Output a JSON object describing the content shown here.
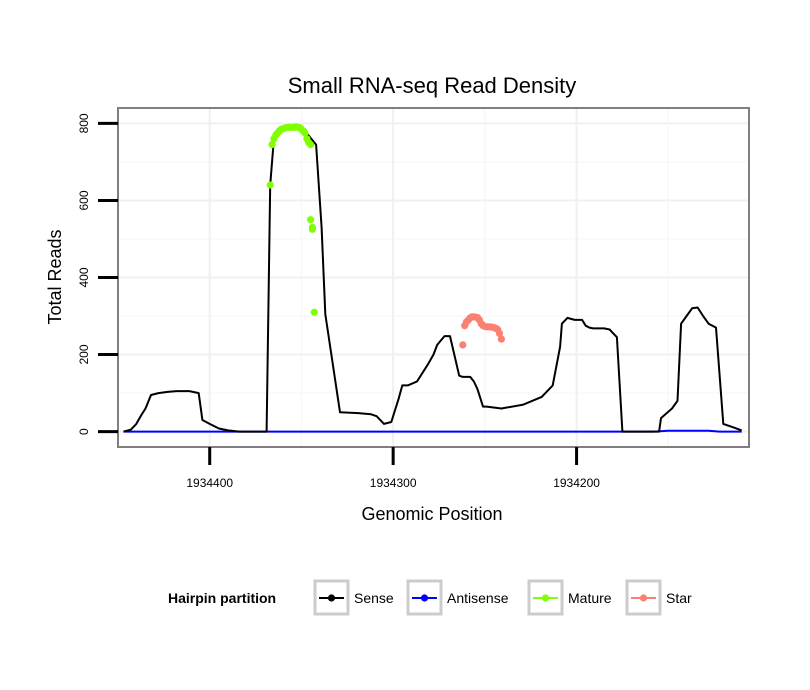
{
  "chart_data": {
    "type": "line",
    "title": "Small RNA-seq Read Density",
    "xlabel": "Genomic Position",
    "ylabel": "Total Reads",
    "xlim": [
      1934450,
      1934106
    ],
    "ylim": [
      -40,
      840
    ],
    "x_reversed": true,
    "grid": true,
    "x_ticks": [
      {
        "value": 1934400,
        "label": "1934400"
      },
      {
        "value": 1934300,
        "label": "1934300"
      },
      {
        "value": 1934200,
        "label": "1934200"
      }
    ],
    "y_ticks": [
      {
        "value": 0,
        "label": "0"
      },
      {
        "value": 200,
        "label": "200"
      },
      {
        "value": 400,
        "label": "400"
      },
      {
        "value": 600,
        "label": "600"
      },
      {
        "value": 800,
        "label": "800"
      }
    ],
    "legend": {
      "title": "Hairpin partition",
      "position": "bottom",
      "entries": [
        {
          "name": "Sense",
          "color": "#000000"
        },
        {
          "name": "Antisense",
          "color": "#0000FF"
        },
        {
          "name": "Mature",
          "color": "#7FFF00"
        },
        {
          "name": "Star",
          "color": "#FA8072"
        }
      ]
    },
    "series": [
      {
        "name": "Sense",
        "color": "#000000",
        "mode": "line",
        "x": [
          1934447,
          1934443,
          1934440,
          1934437,
          1934435,
          1934432,
          1934428,
          1934423,
          1934418,
          1934411,
          1934406,
          1934404,
          1934400,
          1934395,
          1934390,
          1934384,
          1934373,
          1934369,
          1934367,
          1934365,
          1934363,
          1934360,
          1934355,
          1934349,
          1934342,
          1934339,
          1934337,
          1934329,
          1934319,
          1934312,
          1934309,
          1934305,
          1934301,
          1934297,
          1934295,
          1934292,
          1934287,
          1934281,
          1934278,
          1934276,
          1934272,
          1934269,
          1934264,
          1934262,
          1934258,
          1934256,
          1934254,
          1934251,
          1934249,
          1934241,
          1934229,
          1934219,
          1934213,
          1934209,
          1934208,
          1934205,
          1934201,
          1934197,
          1934195,
          1934193,
          1934191,
          1934189,
          1934185,
          1934182,
          1934180,
          1934178,
          1934175,
          1934170,
          1934166,
          1934164,
          1934160,
          1934155,
          1934154,
          1934148,
          1934145,
          1934143,
          1934140,
          1934137,
          1934134,
          1934131,
          1934128,
          1934124,
          1934120,
          1934114,
          1934110
        ],
        "y": [
          0,
          5,
          20,
          45,
          60,
          95,
          100,
          103,
          105,
          105,
          100,
          30,
          20,
          8,
          3,
          0,
          0,
          0,
          640,
          760,
          785,
          790,
          790,
          785,
          745,
          530,
          305,
          50,
          48,
          45,
          40,
          20,
          25,
          85,
          120,
          120,
          130,
          175,
          200,
          225,
          248,
          248,
          145,
          142,
          142,
          130,
          110,
          65,
          65,
          60,
          70,
          90,
          120,
          220,
          280,
          295,
          290,
          290,
          275,
          270,
          268,
          268,
          268,
          265,
          255,
          245,
          0,
          0,
          0,
          0,
          0,
          0,
          35,
          60,
          80,
          280,
          300,
          320,
          322,
          300,
          280,
          270,
          20,
          10,
          3
        ]
      },
      {
        "name": "Antisense",
        "color": "#0000FF",
        "mode": "line",
        "x": [
          1934447,
          1934400,
          1934300,
          1934200,
          1934158,
          1934150,
          1934128,
          1934122,
          1934110
        ],
        "y": [
          0,
          0,
          0,
          0,
          0,
          2,
          2,
          0,
          0
        ]
      },
      {
        "name": "Mature",
        "color": "#7FFF00",
        "mode": "points",
        "x": [
          1934367,
          1934366,
          1934365,
          1934364,
          1934363,
          1934362,
          1934361,
          1934360,
          1934359,
          1934358,
          1934357,
          1934356,
          1934355,
          1934354,
          1934353,
          1934352,
          1934351,
          1934350,
          1934349,
          1934348,
          1934347,
          1934346,
          1934345,
          1934345,
          1934344,
          1934344,
          1934343
        ],
        "y": [
          640,
          745,
          760,
          770,
          775,
          780,
          785,
          786,
          788,
          789,
          790,
          790,
          790,
          790,
          791,
          790,
          789,
          785,
          780,
          775,
          760,
          750,
          745,
          550,
          530,
          525,
          310
        ]
      },
      {
        "name": "Star",
        "color": "#FA8072",
        "mode": "points",
        "x": [
          1934262,
          1934261,
          1934260,
          1934259,
          1934258,
          1934257,
          1934256,
          1934255,
          1934254,
          1934253,
          1934252,
          1934251,
          1934250,
          1934249,
          1934248,
          1934247,
          1934246,
          1934245,
          1934244,
          1934243,
          1934242,
          1934241
        ],
        "y": [
          225,
          275,
          285,
          290,
          295,
          298,
          298,
          297,
          296,
          290,
          280,
          275,
          273,
          272,
          272,
          272,
          271,
          270,
          268,
          265,
          255,
          240
        ]
      }
    ]
  }
}
